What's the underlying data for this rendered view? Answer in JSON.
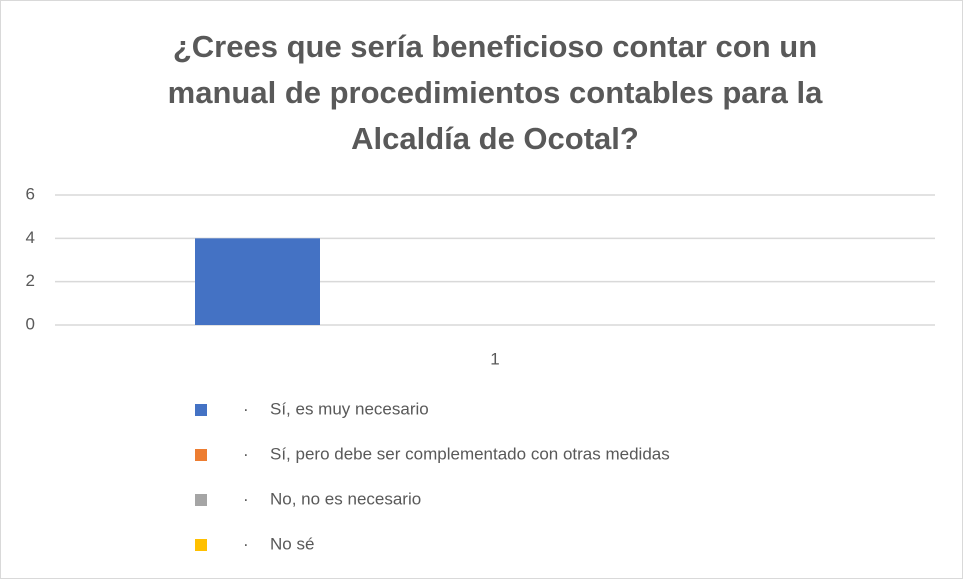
{
  "chart_data": {
    "type": "bar",
    "title": "¿Crees que sería beneficioso contar con un manual de procedimientos contables para la Alcaldía de Ocotal?",
    "categories": [
      "1"
    ],
    "series": [
      {
        "name": "Sí, es muy necesario",
        "color": "#4472c4",
        "values": [
          4
        ]
      },
      {
        "name": "Sí, pero debe ser complementado con otras medidas",
        "color": "#ed7d31",
        "values": [
          0
        ]
      },
      {
        "name": "No, no es necesario",
        "color": "#a5a5a5",
        "values": [
          0
        ]
      },
      {
        "name": "No sé",
        "color": "#ffc000",
        "values": [
          0
        ]
      }
    ],
    "legend_marker": "·",
    "ylim": [
      0,
      6
    ],
    "yticks": [
      0,
      2,
      4,
      6
    ],
    "grid": true,
    "legend_position": "bottom"
  }
}
